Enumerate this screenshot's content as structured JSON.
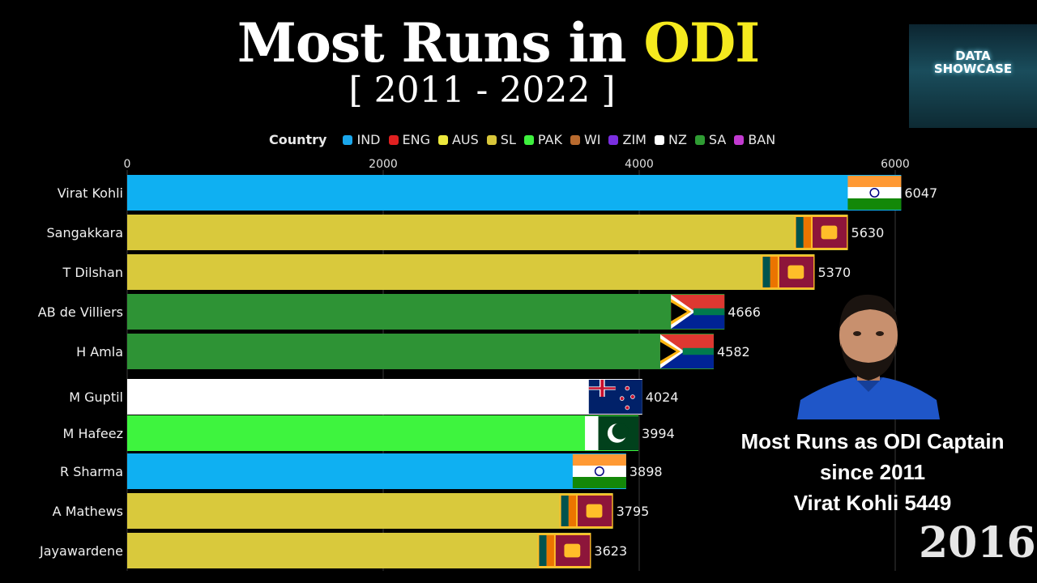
{
  "title": {
    "main": "Most Runs in ",
    "highlight": "ODI"
  },
  "subtitle": "[ 2011 - 2022 ]",
  "logo": {
    "line1": "DATA",
    "line2": "SHOWCASE"
  },
  "legend": {
    "title": "Country",
    "items": [
      {
        "label": "IND",
        "color": "#1aa7ec"
      },
      {
        "label": "ENG",
        "color": "#e02020"
      },
      {
        "label": "AUS",
        "color": "#ece83c"
      },
      {
        "label": "SL",
        "color": "#d8c63a"
      },
      {
        "label": "PAK",
        "color": "#3ef03e"
      },
      {
        "label": "WI",
        "color": "#b86a2e"
      },
      {
        "label": "ZIM",
        "color": "#7a2ee0"
      },
      {
        "label": "NZ",
        "color": "#ffffff"
      },
      {
        "label": "SA",
        "color": "#2f9c33"
      },
      {
        "label": "BAN",
        "color": "#c23ad0"
      }
    ]
  },
  "chart_data": {
    "type": "bar",
    "orientation": "horizontal",
    "xlim": [
      0,
      6200
    ],
    "x_ticks": [
      0,
      2000,
      4000,
      6000
    ],
    "categories": [
      "Virat Kohli",
      "Sangakkara",
      "T Dilshan",
      "AB de Villiers",
      "H Amla",
      "M Guptil",
      "M Hafeez",
      "R Sharma",
      "A Mathews",
      "Jayawardene"
    ],
    "values": [
      6047,
      5630,
      5370,
      4666,
      4582,
      4024,
      3994,
      3898,
      3795,
      3623
    ],
    "countries": [
      "IND",
      "SL",
      "SL",
      "SA",
      "SA",
      "NZ",
      "PAK",
      "IND",
      "SL",
      "SL"
    ],
    "bar_colors": [
      "#0fb0f2",
      "#d9c93c",
      "#d9c93c",
      "#2e9335",
      "#2e9335",
      "#ffffff",
      "#3ef43e",
      "#0fb0f2",
      "#d9c93c",
      "#d9c93c"
    ],
    "grid": true,
    "legend_placement": "top"
  },
  "caption": {
    "line1": "Most Runs as ODI Captain",
    "line2": "since 2011",
    "line3": "Virat Kohli 5449"
  },
  "year": "2016"
}
